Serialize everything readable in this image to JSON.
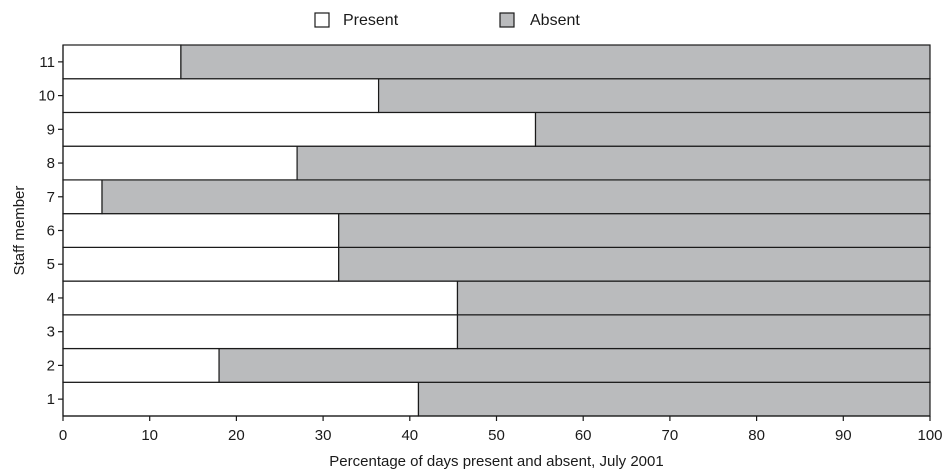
{
  "chart_data": {
    "type": "bar",
    "orientation": "horizontal",
    "stacked": true,
    "categories": [
      "1",
      "2",
      "3",
      "4",
      "5",
      "6",
      "7",
      "8",
      "9",
      "10",
      "11"
    ],
    "series": [
      {
        "name": "Present",
        "color": "#ffffff",
        "values": [
          41,
          18,
          45.5,
          45.5,
          31.8,
          31.8,
          4.5,
          27,
          54.5,
          36.4,
          13.6
        ]
      },
      {
        "name": "Absent",
        "color": "#babbbd",
        "values": [
          59,
          82,
          54.5,
          54.5,
          68.2,
          68.2,
          95.5,
          73,
          45.5,
          63.6,
          86.4
        ]
      }
    ],
    "xlabel": "Percentage of days present and absent, July 2001",
    "ylabel": "Staff member",
    "xlim": [
      0,
      100
    ],
    "xticks": [
      "0",
      "10",
      "20",
      "30",
      "40",
      "50",
      "60",
      "70",
      "80",
      "90",
      "100"
    ],
    "legend_position": "top-center",
    "grid": false
  }
}
